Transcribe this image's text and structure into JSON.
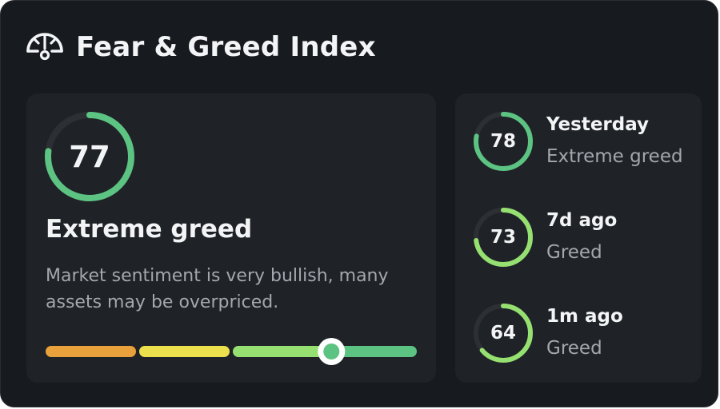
{
  "header": {
    "title": "Fear & Greed Index",
    "icon": "gauge-icon"
  },
  "current": {
    "value": "77",
    "score": 77,
    "label": "Extreme greed",
    "description": "Market sentiment is very bullish, many assets may be overpriced.",
    "ring_color": "#5cc382",
    "marker_color": "#5cc382"
  },
  "scale": {
    "segment_colors": [
      "#e9a13b",
      "#ece04d",
      "#95e070",
      "#5cc382"
    ],
    "position_fraction": 0.77
  },
  "history": [
    {
      "when": "Yesterday",
      "value": "78",
      "score": 78,
      "label": "Extreme greed",
      "color": "#5cc382"
    },
    {
      "when": "7d ago",
      "value": "73",
      "score": 73,
      "label": "Greed",
      "color": "#95e070"
    },
    {
      "when": "1m ago",
      "value": "64",
      "score": 64,
      "label": "Greed",
      "color": "#95e070"
    }
  ],
  "colors": {
    "background": "#171a1e",
    "card": "#1f2227",
    "track": "#2c3035",
    "text": "#f3f4f6",
    "muted": "#a4a8ae"
  }
}
